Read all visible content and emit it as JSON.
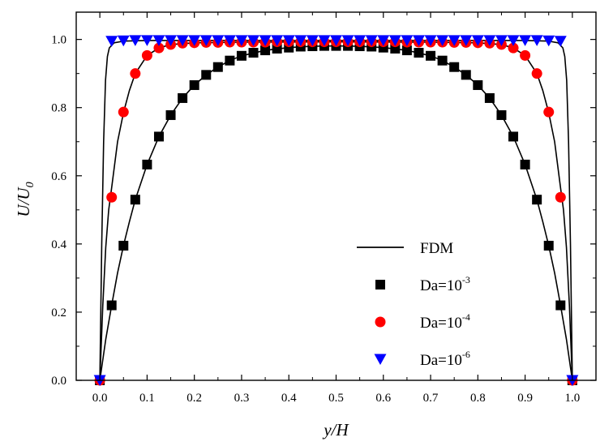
{
  "chart_data": {
    "type": "scatter",
    "title": "",
    "xlabel": "y/H",
    "ylabel_main": "U/U",
    "ylabel_sub": "0",
    "xlim": [
      -0.05,
      1.05
    ],
    "ylim": [
      0.0,
      1.08
    ],
    "xticks": [
      0.0,
      0.1,
      0.2,
      0.3,
      0.4,
      0.5,
      0.6,
      0.7,
      0.8,
      0.9,
      1.0
    ],
    "xtick_labels": [
      "0.0",
      "0.1",
      "0.2",
      "0.3",
      "0.4",
      "0.5",
      "0.6",
      "0.7",
      "0.8",
      "0.9",
      "1.0"
    ],
    "yticks": [
      0.0,
      0.2,
      0.4,
      0.6,
      0.8,
      1.0
    ],
    "ytick_labels": [
      "0.0",
      "0.2",
      "0.4",
      "0.6",
      "0.8",
      "1.0"
    ],
    "grid": false,
    "legend_position": "lower-right",
    "legend": [
      {
        "base": "FDM",
        "sup": "",
        "marker": "line",
        "color": "#000000"
      },
      {
        "base": "Da=10",
        "sup": "-3",
        "marker": "square",
        "color": "#000000"
      },
      {
        "base": "Da=10",
        "sup": "-4",
        "marker": "circle",
        "color": "#ff0000"
      },
      {
        "base": "Da=10",
        "sup": "-6",
        "marker": "triangle-down",
        "color": "#0000ff"
      }
    ],
    "lines": [
      {
        "name": "FDM Da=10^-3",
        "color": "#000000",
        "x": [
          0.0,
          0.0125,
          0.025,
          0.0375,
          0.05,
          0.0625,
          0.075,
          0.1,
          0.125,
          0.15,
          0.175,
          0.2,
          0.225,
          0.25,
          0.275,
          0.3,
          0.35,
          0.4,
          0.45,
          0.5,
          0.55,
          0.6,
          0.65,
          0.7,
          0.725,
          0.75,
          0.775,
          0.8,
          0.825,
          0.85,
          0.875,
          0.9,
          0.925,
          0.9375,
          0.95,
          0.9625,
          0.975,
          0.9875,
          1.0
        ],
        "y": [
          0.0,
          0.12,
          0.22,
          0.315,
          0.395,
          0.465,
          0.53,
          0.633,
          0.715,
          0.778,
          0.828,
          0.866,
          0.896,
          0.919,
          0.938,
          0.952,
          0.968,
          0.976,
          0.98,
          0.981,
          0.98,
          0.976,
          0.968,
          0.952,
          0.938,
          0.919,
          0.896,
          0.866,
          0.828,
          0.778,
          0.715,
          0.633,
          0.53,
          0.465,
          0.395,
          0.315,
          0.22,
          0.12,
          0.0
        ]
      },
      {
        "name": "FDM Da=10^-4",
        "color": "#000000",
        "x": [
          0.0,
          0.00625,
          0.0125,
          0.01875,
          0.025,
          0.0375,
          0.05,
          0.0625,
          0.075,
          0.1,
          0.125,
          0.15,
          0.2,
          0.3,
          0.5,
          0.7,
          0.8,
          0.85,
          0.875,
          0.9,
          0.925,
          0.9375,
          0.95,
          0.9625,
          0.975,
          0.98125,
          0.9875,
          0.99375,
          1.0
        ],
        "y": [
          0.0,
          0.22,
          0.39,
          0.5,
          0.565,
          0.7,
          0.785,
          0.85,
          0.9,
          0.953,
          0.975,
          0.985,
          0.99,
          0.992,
          0.993,
          0.992,
          0.99,
          0.985,
          0.975,
          0.953,
          0.9,
          0.85,
          0.785,
          0.7,
          0.565,
          0.5,
          0.39,
          0.22,
          0.0
        ]
      },
      {
        "name": "FDM Da=10^-6",
        "color": "#000000",
        "x": [
          0.0,
          0.004,
          0.008,
          0.012,
          0.016,
          0.02,
          0.03,
          0.05,
          0.1,
          0.5,
          0.9,
          0.95,
          0.97,
          0.98,
          0.984,
          0.988,
          0.992,
          0.996,
          1.0
        ],
        "y": [
          0.0,
          0.4,
          0.7,
          0.88,
          0.95,
          0.975,
          0.99,
          0.995,
          0.997,
          0.997,
          0.997,
          0.995,
          0.99,
          0.975,
          0.95,
          0.88,
          0.7,
          0.4,
          0.0
        ]
      }
    ],
    "series": [
      {
        "name": "Da=10^-3",
        "marker": "square",
        "color": "#000000",
        "x": [
          0.0,
          0.025,
          0.05,
          0.075,
          0.1,
          0.125,
          0.15,
          0.175,
          0.2,
          0.225,
          0.25,
          0.275,
          0.3,
          0.325,
          0.35,
          0.375,
          0.4,
          0.425,
          0.45,
          0.475,
          0.5,
          0.525,
          0.55,
          0.575,
          0.6,
          0.625,
          0.65,
          0.675,
          0.7,
          0.725,
          0.75,
          0.775,
          0.8,
          0.825,
          0.85,
          0.875,
          0.9,
          0.925,
          0.95,
          0.975,
          1.0
        ],
        "y": [
          0.0,
          0.22,
          0.395,
          0.53,
          0.633,
          0.715,
          0.778,
          0.828,
          0.866,
          0.896,
          0.919,
          0.938,
          0.952,
          0.961,
          0.968,
          0.973,
          0.976,
          0.979,
          0.98,
          0.981,
          0.981,
          0.981,
          0.98,
          0.979,
          0.976,
          0.973,
          0.968,
          0.961,
          0.952,
          0.938,
          0.919,
          0.896,
          0.866,
          0.828,
          0.778,
          0.715,
          0.633,
          0.53,
          0.395,
          0.22,
          0.0
        ]
      },
      {
        "name": "Da=10^-4",
        "marker": "circle",
        "color": "#ff0000",
        "x": [
          0.0,
          0.025,
          0.05,
          0.075,
          0.1,
          0.125,
          0.15,
          0.175,
          0.2,
          0.225,
          0.25,
          0.275,
          0.3,
          0.325,
          0.35,
          0.375,
          0.4,
          0.425,
          0.45,
          0.475,
          0.5,
          0.525,
          0.55,
          0.575,
          0.6,
          0.625,
          0.65,
          0.675,
          0.7,
          0.725,
          0.75,
          0.775,
          0.8,
          0.825,
          0.85,
          0.875,
          0.9,
          0.925,
          0.95,
          0.975,
          1.0
        ],
        "y": [
          0.0,
          0.537,
          0.787,
          0.9,
          0.953,
          0.975,
          0.985,
          0.989,
          0.99,
          0.991,
          0.991,
          0.992,
          0.992,
          0.992,
          0.992,
          0.993,
          0.993,
          0.993,
          0.993,
          0.993,
          0.993,
          0.993,
          0.993,
          0.993,
          0.993,
          0.993,
          0.992,
          0.992,
          0.992,
          0.992,
          0.991,
          0.991,
          0.99,
          0.989,
          0.985,
          0.975,
          0.953,
          0.9,
          0.787,
          0.537,
          0.0
        ]
      },
      {
        "name": "Da=10^-6",
        "marker": "triangle-down",
        "color": "#0000ff",
        "x": [
          0.0,
          0.025,
          0.05,
          0.075,
          0.1,
          0.125,
          0.15,
          0.175,
          0.2,
          0.225,
          0.25,
          0.275,
          0.3,
          0.325,
          0.35,
          0.375,
          0.4,
          0.425,
          0.45,
          0.475,
          0.5,
          0.525,
          0.55,
          0.575,
          0.6,
          0.625,
          0.65,
          0.675,
          0.7,
          0.725,
          0.75,
          0.775,
          0.8,
          0.825,
          0.85,
          0.875,
          0.9,
          0.925,
          0.95,
          0.975,
          1.0
        ],
        "y": [
          0.0,
          0.995,
          0.996,
          0.997,
          0.997,
          0.997,
          0.997,
          0.997,
          0.997,
          0.997,
          0.997,
          0.997,
          0.997,
          0.997,
          0.997,
          0.997,
          0.997,
          0.997,
          0.997,
          0.997,
          0.997,
          0.997,
          0.997,
          0.997,
          0.997,
          0.997,
          0.997,
          0.997,
          0.997,
          0.997,
          0.997,
          0.997,
          0.997,
          0.997,
          0.997,
          0.997,
          0.997,
          0.997,
          0.996,
          0.995,
          0.0
        ]
      }
    ]
  }
}
